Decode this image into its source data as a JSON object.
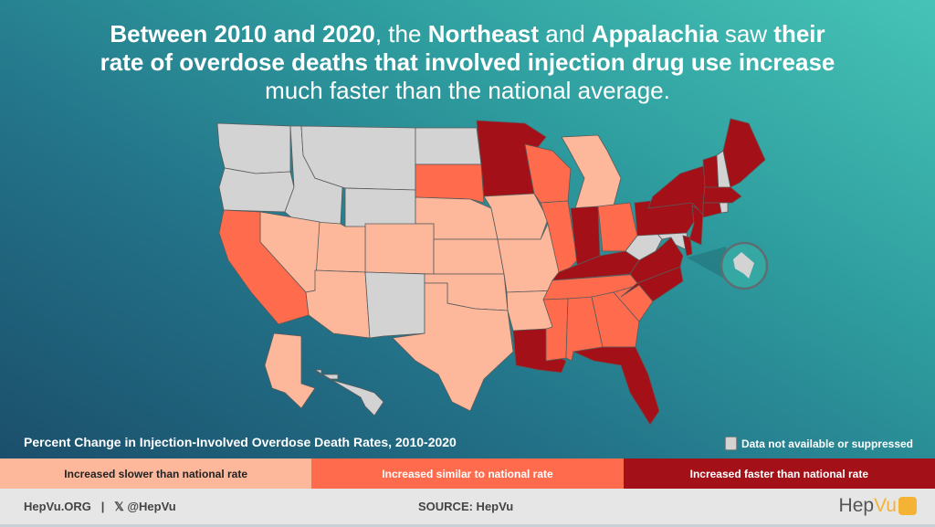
{
  "title": {
    "parts": [
      {
        "text": "Between 2010 and 2020",
        "bold": true
      },
      {
        "text": ", the ",
        "bold": false
      },
      {
        "text": "Northeast",
        "bold": true
      },
      {
        "text": " and ",
        "bold": false
      },
      {
        "text": "Appalachia",
        "bold": true
      },
      {
        "text": " saw ",
        "bold": false
      },
      {
        "text": "their rate of overdose deaths that involved injection drug use increase",
        "bold": true
      },
      {
        "text": " much faster than the national average.",
        "bold": false
      }
    ]
  },
  "map": {
    "subtitle": "Percent Change in Injection-Involved Overdose Death Rates, 2010-2020",
    "na_label": "Data not available or suppressed",
    "colors": {
      "slower": "#fdb89b",
      "similar": "#fe6b4d",
      "faster": "#a31018",
      "na": "#d3d3d3"
    },
    "legend": [
      {
        "key": "slower",
        "label": "Increased slower than national rate"
      },
      {
        "key": "similar",
        "label": "Increased similar to national rate"
      },
      {
        "key": "faster",
        "label": "Increased faster than national rate"
      }
    ],
    "states": {
      "faster": [
        "MN",
        "ME",
        "VT",
        "NY",
        "MA",
        "CT",
        "PA",
        "NJ",
        "DE",
        "VA",
        "NC",
        "KY",
        "IN",
        "LA",
        "FL"
      ],
      "similar": [
        "SD",
        "WI",
        "IL",
        "OH",
        "CA",
        "TN",
        "MS",
        "AL",
        "GA",
        "SC"
      ],
      "slower": [
        "NV",
        "UT",
        "CO",
        "AZ",
        "NE",
        "KS",
        "OK",
        "TX",
        "IA",
        "MO",
        "AR",
        "MI",
        "AK"
      ],
      "na": [
        "WA",
        "OR",
        "ID",
        "MT",
        "WY",
        "ND",
        "NM",
        "NH",
        "RI",
        "MD",
        "WV",
        "DC",
        "HI"
      ]
    }
  },
  "footer": {
    "site": "HepVu.ORG",
    "separator": "|",
    "social": "𝕏 @HepVu",
    "source": "SOURCE: HepVu",
    "logo_text_a": "Hep",
    "logo_text_b": "Vu"
  }
}
